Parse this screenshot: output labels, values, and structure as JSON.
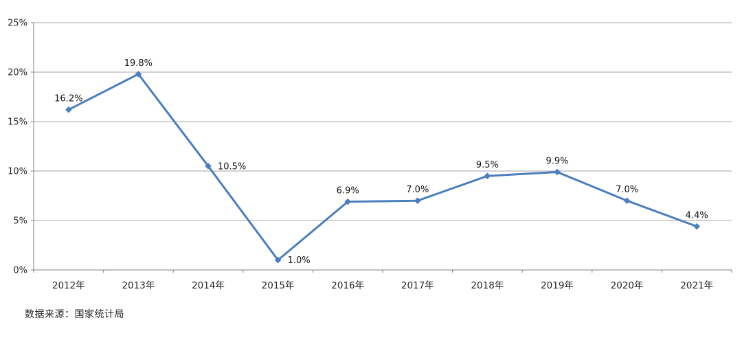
{
  "chart_data": {
    "type": "line",
    "title": "",
    "categories": [
      "2012年",
      "2013年",
      "2014年",
      "2015年",
      "2016年",
      "2017年",
      "2018年",
      "2019年",
      "2020年",
      "2021年"
    ],
    "values": [
      16.2,
      19.8,
      10.5,
      1.0,
      6.9,
      7.0,
      9.5,
      9.9,
      7.0,
      4.4
    ],
    "data_labels": [
      "16.2%",
      "19.8%",
      "10.5%",
      "1.0%",
      "6.9%",
      "7.0%",
      "9.5%",
      "9.9%",
      "7.0%",
      "4.4%"
    ],
    "label_placement": [
      "above",
      "above",
      "right",
      "right",
      "above",
      "above",
      "above",
      "above",
      "above",
      "above"
    ],
    "y_ticks": [
      {
        "value": 0,
        "label": "0%"
      },
      {
        "value": 5,
        "label": "5%"
      },
      {
        "value": 10,
        "label": "10%"
      },
      {
        "value": 15,
        "label": "15%"
      },
      {
        "value": 20,
        "label": "20%"
      },
      {
        "value": 25,
        "label": "25%"
      }
    ],
    "ylim": [
      0,
      25
    ],
    "grid": true,
    "legend": "none",
    "marker": "diamond",
    "colors": {
      "line": "#4A7EBD",
      "marker": "#4A7EBD",
      "gridline": "#A6A6A6",
      "axis": "#808080",
      "tick_text": "#262626",
      "data_label_text": "#111111"
    }
  },
  "footer": {
    "source_text": "数据来源：国家统计局"
  }
}
